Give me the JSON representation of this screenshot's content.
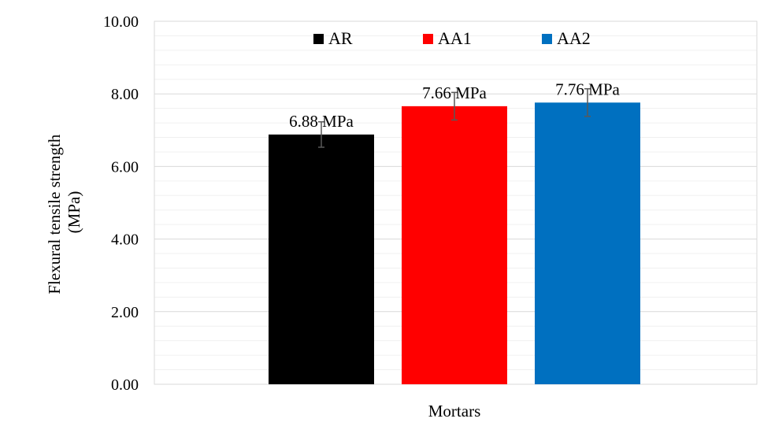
{
  "chart_data": {
    "type": "bar",
    "title": "",
    "xlabel": "Mortars",
    "ylabel_lines": [
      "Flexural tensile strength",
      "(MPa)"
    ],
    "ylim": [
      0,
      10
    ],
    "y_ticks": [
      "0.00",
      "2.00",
      "4.00",
      "6.00",
      "8.00",
      "10.00"
    ],
    "major_step": 2,
    "minor_step": 0.4,
    "grid": true,
    "legend_position": "top",
    "series": [
      {
        "name": "AR",
        "value": 6.88,
        "error": 0.35,
        "color": "#000000",
        "label": "6.88 MPa"
      },
      {
        "name": "AA1",
        "value": 7.66,
        "error": 0.38,
        "color": "#ff0000",
        "label": "7.66 MPa"
      },
      {
        "name": "AA2",
        "value": 7.76,
        "error": 0.38,
        "color": "#0070c0",
        "label": "7.76 MPa"
      }
    ]
  }
}
